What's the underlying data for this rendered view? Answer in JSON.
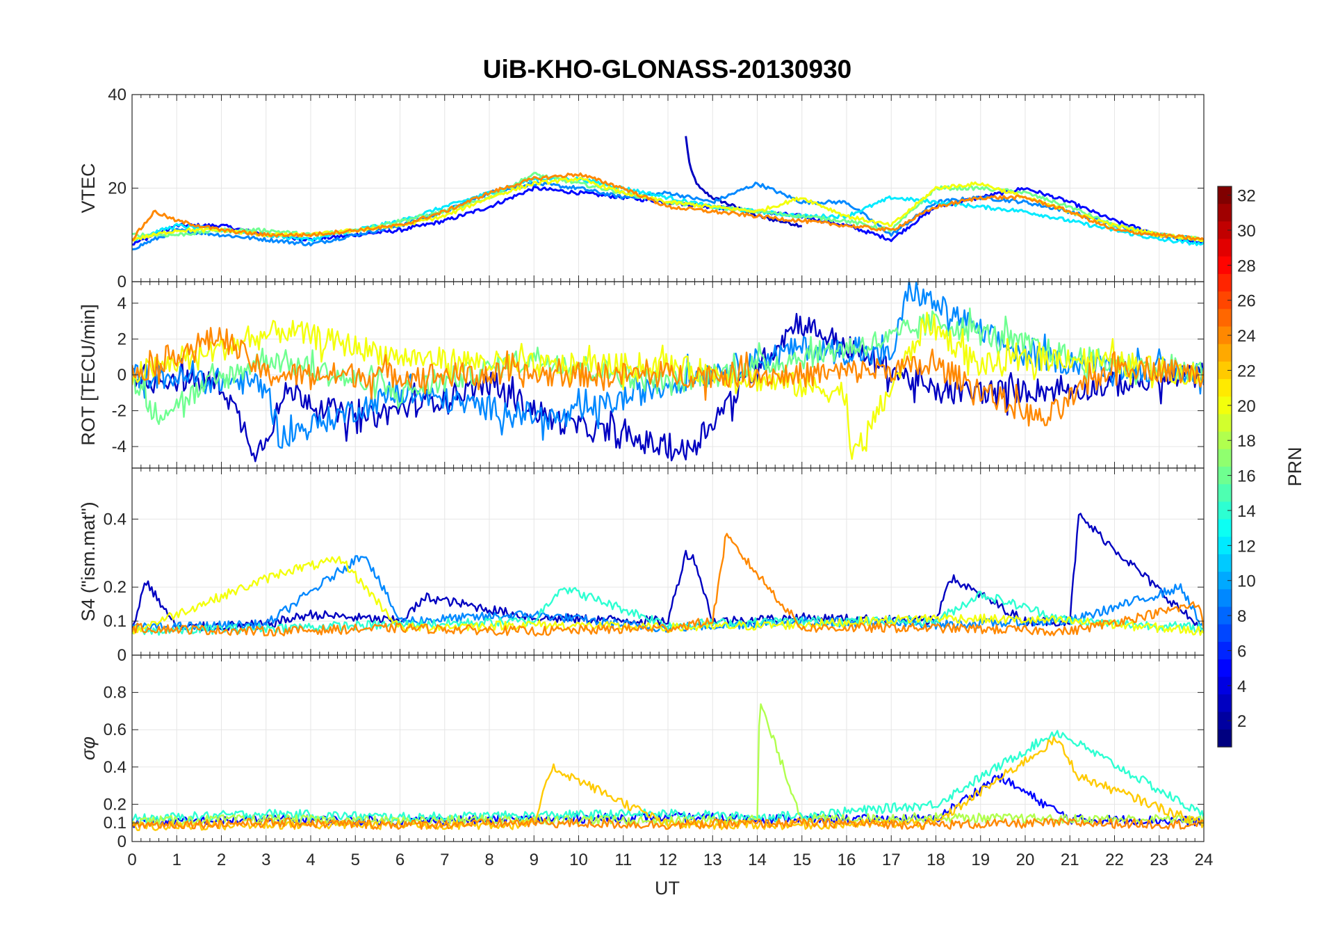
{
  "chart_data": {
    "type": "line",
    "title": "UiB-KHO-GLONASS-20130930",
    "xlabel": "UT",
    "xlim": [
      0,
      24
    ],
    "xticks": [
      "0",
      "1",
      "2",
      "3",
      "4",
      "5",
      "6",
      "7",
      "8",
      "9",
      "10",
      "11",
      "12",
      "13",
      "14",
      "15",
      "16",
      "17",
      "18",
      "19",
      "20",
      "21",
      "22",
      "23",
      "24"
    ],
    "grid": true,
    "colorbar": {
      "label": "PRN",
      "range": [
        1,
        32
      ],
      "ticks": [
        "2",
        "4",
        "6",
        "8",
        "10",
        "12",
        "14",
        "16",
        "18",
        "20",
        "22",
        "24",
        "26",
        "28",
        "30",
        "32"
      ],
      "colormap": "jet"
    },
    "panels": [
      {
        "id": "vtec",
        "ylabel": "VTEC",
        "ylim": [
          0,
          40
        ],
        "yticks": [
          "0",
          "20",
          "40"
        ],
        "series": [
          {
            "prn": 3,
            "x": [
              12.4,
              12.5,
              12.7,
              13.0,
              13.5,
              14.0,
              14.5,
              15.0
            ],
            "values": [
              31,
              24,
              20,
              18,
              16,
              14,
              13,
              12
            ]
          },
          {
            "prn": 5,
            "x": [
              0,
              1,
              2,
              3,
              4,
              5,
              6,
              7,
              8,
              9,
              10,
              11,
              12,
              13,
              14,
              15,
              16,
              17,
              18,
              19,
              20,
              21,
              22,
              23,
              24
            ],
            "values": [
              8,
              12,
              12,
              10,
              9,
              10,
              11,
              13,
              16,
              20,
              19,
              18,
              17,
              16,
              15,
              14,
              12,
              9,
              16,
              18,
              20,
              17,
              13,
              10,
              8
            ]
          },
          {
            "prn": 9,
            "x": [
              0,
              1,
              2,
              3,
              4,
              5,
              6,
              7,
              8,
              9,
              10,
              11,
              12,
              13,
              14,
              15,
              16,
              17,
              18,
              19,
              20,
              21,
              22,
              23,
              24
            ],
            "values": [
              7,
              11,
              10,
              9,
              8,
              10,
              12,
              15,
              19,
              21,
              20,
              18,
              19,
              17,
              21,
              17,
              17,
              10,
              17,
              18,
              17,
              15,
              12,
              10,
              9
            ]
          },
          {
            "prn": 12,
            "x": [
              0,
              1,
              2,
              3,
              4,
              5,
              6,
              7,
              8,
              9,
              10,
              11,
              12,
              13,
              14,
              15,
              16,
              17,
              18,
              19,
              20,
              21,
              22,
              23,
              24
            ],
            "values": [
              9,
              12,
              11,
              10,
              9,
              11,
              13,
              16,
              19,
              22,
              22,
              20,
              18,
              16,
              15,
              14,
              14,
              18,
              17,
              16,
              15,
              13,
              11,
              9,
              8
            ]
          },
          {
            "prn": 16,
            "x": [
              0,
              1,
              2,
              3,
              4,
              5,
              6,
              7,
              8,
              9,
              10,
              11,
              12,
              13,
              14,
              15,
              16,
              17,
              18,
              19,
              20,
              21,
              22,
              23,
              24
            ],
            "values": [
              10,
              10,
              11,
              11,
              10,
              11,
              13,
              15,
              18,
              23,
              21,
              19,
              17,
              16,
              15,
              14,
              13,
              11,
              20,
              20,
              19,
              16,
              12,
              10,
              9
            ]
          },
          {
            "prn": 20,
            "x": [
              0,
              1,
              2,
              3,
              4,
              5,
              6,
              7,
              8,
              9,
              10,
              11,
              12,
              13,
              14,
              15,
              16,
              17,
              18,
              19,
              20,
              21,
              22,
              23,
              24
            ],
            "values": [
              9,
              11,
              11,
              10,
              10,
              11,
              12,
              14,
              18,
              21,
              22,
              19,
              17,
              16,
              15,
              18,
              14,
              12,
              20,
              21,
              18,
              15,
              12,
              10,
              9
            ]
          },
          {
            "prn": 24,
            "x": [
              0,
              0.5,
              1,
              2,
              3,
              4,
              5,
              6,
              7,
              8,
              9,
              10,
              11,
              12,
              13,
              14,
              15,
              16,
              17,
              18,
              19,
              20,
              21,
              22,
              23,
              24
            ],
            "values": [
              9,
              15,
              13,
              11,
              10,
              10,
              11,
              12,
              15,
              19,
              22,
              23,
              20,
              16,
              15,
              14,
              13,
              12,
              11,
              16,
              18,
              18,
              15,
              11,
              10,
              9
            ]
          }
        ]
      },
      {
        "id": "rot",
        "ylabel": "ROT [TECU/min]",
        "ylim": [
          -5.2,
          5.2
        ],
        "yticks": [
          "-4",
          "-2",
          "0",
          "2",
          "4"
        ],
        "series": [
          {
            "prn": 3,
            "x": [
              0,
              2,
              2.8,
              3.5,
              5,
              8,
              9.4,
              12.4,
              14.9,
              18,
              21,
              24
            ],
            "values": [
              0,
              -0.5,
              -4.4,
              -0.8,
              -2.6,
              -0.5,
              -2.5,
              -4.3,
              3,
              -1,
              -0.8,
              0
            ]
          },
          {
            "prn": 9,
            "x": [
              0,
              3,
              3.3,
              6,
              9.6,
              12,
              15,
              17,
              17.4,
              20,
              24
            ],
            "values": [
              0,
              -0.5,
              -3.5,
              -1,
              -2.5,
              -0.5,
              1.5,
              1,
              4.8,
              1,
              0
            ]
          },
          {
            "prn": 16,
            "x": [
              0,
              0.5,
              3,
              6,
              9,
              12,
              15,
              17,
              18,
              21,
              24
            ],
            "values": [
              0,
              -2.2,
              1,
              -1,
              1,
              -0.5,
              1,
              2,
              3,
              1,
              0
            ]
          },
          {
            "prn": 20,
            "x": [
              0,
              3.4,
              6,
              9,
              12,
              16,
              16.1,
              17.8,
              19,
              21,
              24
            ],
            "values": [
              0,
              2.5,
              1,
              0.5,
              0.5,
              -1,
              -4.9,
              3,
              0.5,
              1,
              0
            ]
          },
          {
            "prn": 24,
            "x": [
              0,
              1,
              2,
              3,
              6,
              9,
              12,
              15,
              18,
              20.4,
              22,
              24
            ],
            "values": [
              0,
              1.2,
              2.2,
              0,
              0,
              0,
              0,
              0,
              0.5,
              -2.6,
              0.6,
              0
            ]
          }
        ]
      },
      {
        "id": "s4",
        "ylabel": "S4 (\"ism.mat\")",
        "ylim": [
          0,
          0.55
        ],
        "yticks": [
          "0",
          "0.1",
          "0.2",
          "0.4"
        ],
        "series": [
          {
            "prn": 3,
            "x": [
              0,
              0.3,
              1,
              3,
              4,
              6,
              6.6,
              9,
              12,
              12.4,
              12.6,
              13,
              15,
              18,
              18.3,
              20,
              21,
              21.2,
              24
            ],
            "values": [
              0.07,
              0.22,
              0.08,
              0.09,
              0.12,
              0.1,
              0.17,
              0.11,
              0.1,
              0.3,
              0.28,
              0.1,
              0.11,
              0.1,
              0.23,
              0.1,
              0.1,
              0.41,
              0.07
            ]
          },
          {
            "prn": 9,
            "x": [
              0,
              3,
              5.2,
              6,
              9,
              11,
              12,
              15,
              18,
              21,
              23.5,
              24
            ],
            "values": [
              0.08,
              0.09,
              0.3,
              0.1,
              0.12,
              0.09,
              0.08,
              0.1,
              0.09,
              0.1,
              0.2,
              0.07
            ]
          },
          {
            "prn": 14,
            "x": [
              0,
              3,
              6,
              9,
              9.6,
              12,
              15,
              18,
              19,
              21,
              24
            ],
            "values": [
              0.07,
              0.08,
              0.09,
              0.1,
              0.2,
              0.09,
              0.1,
              0.1,
              0.18,
              0.1,
              0.08
            ]
          },
          {
            "prn": 20,
            "x": [
              0,
              3.5,
              4.7,
              6,
              9,
              12,
              15,
              18,
              21,
              24
            ],
            "values": [
              0.07,
              0.25,
              0.28,
              0.08,
              0.09,
              0.08,
              0.09,
              0.11,
              0.1,
              0.07
            ]
          },
          {
            "prn": 24,
            "x": [
              0,
              3,
              6,
              9,
              12,
              13,
              13.3,
              15,
              18,
              21,
              23.9,
              24
            ],
            "values": [
              0.08,
              0.07,
              0.08,
              0.07,
              0.08,
              0.1,
              0.35,
              0.08,
              0.08,
              0.07,
              0.15,
              0.08
            ]
          }
        ]
      },
      {
        "id": "sigma",
        "ylabel": "σφ",
        "ylim": [
          0,
          1
        ],
        "yticks": [
          "0",
          "0.1",
          "0.2",
          "0.4",
          "0.6",
          "0.8"
        ],
        "series": [
          {
            "prn": 5,
            "x": [
              0,
              3,
              6,
              9,
              12,
              15,
              18,
              19.4,
              21,
              24
            ],
            "values": [
              0.1,
              0.12,
              0.11,
              0.12,
              0.13,
              0.12,
              0.12,
              0.35,
              0.12,
              0.11
            ]
          },
          {
            "prn": 14,
            "x": [
              0,
              3,
              6,
              9,
              12,
              14,
              15,
              18,
              20.7,
              24
            ],
            "values": [
              0.12,
              0.15,
              0.13,
              0.14,
              0.15,
              0.13,
              0.14,
              0.2,
              0.59,
              0.14
            ]
          },
          {
            "prn": 18,
            "x": [
              0,
              3,
              6,
              9,
              12,
              14,
              14.05,
              15,
              18,
              21,
              24
            ],
            "values": [
              0.11,
              0.12,
              0.11,
              0.12,
              0.11,
              0.12,
              0.75,
              0.12,
              0.13,
              0.12,
              0.12
            ]
          },
          {
            "prn": 22,
            "x": [
              0,
              3,
              6,
              9,
              9.4,
              12,
              15,
              18,
              20.7,
              21.2,
              24
            ],
            "values": [
              0.08,
              0.09,
              0.09,
              0.09,
              0.4,
              0.09,
              0.09,
              0.1,
              0.55,
              0.35,
              0.09
            ]
          },
          {
            "prn": 24,
            "x": [
              0,
              3,
              6,
              9,
              12,
              15,
              18,
              21,
              24
            ],
            "values": [
              0.09,
              0.1,
              0.09,
              0.1,
              0.09,
              0.1,
              0.09,
              0.1,
              0.09
            ]
          }
        ]
      }
    ]
  }
}
